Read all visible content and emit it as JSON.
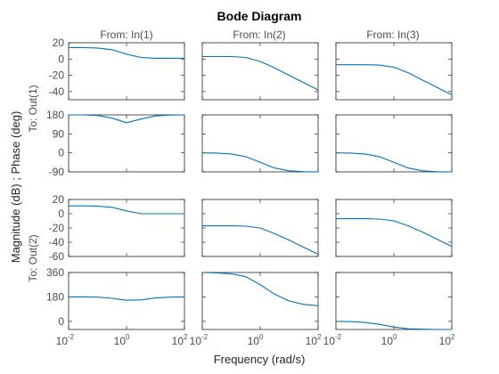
{
  "figure": {
    "title": "Bode Diagram",
    "xlabel": "Frequency (rad/s)",
    "ylabel": "Magnitude (dB) ; Phase (deg)"
  },
  "colors": {
    "line": "#0072BD",
    "axes": "#262626",
    "label": "#4d4d4d",
    "background": "#ffffff"
  },
  "chart_data": {
    "type": "line",
    "title": "Bode Diagram",
    "xlabel": "Frequency (rad/s)",
    "ylabel": "Magnitude (dB) ; Phase (deg)",
    "xscale": "log",
    "xlim": [
      0.01,
      100
    ],
    "xticks": [
      0.01,
      1,
      100
    ],
    "xtick_labels": [
      [
        "10",
        "-2"
      ],
      [
        "10",
        "0"
      ],
      [
        "10",
        "2"
      ]
    ],
    "grid": false,
    "column_labels": [
      "From: In(1)",
      "From: In(2)",
      "From: In(3)"
    ],
    "row_labels": [
      "To: Out(1)",
      "To: Out(2)"
    ],
    "x": [
      0.01,
      0.0316,
      0.1,
      0.316,
      1,
      3.16,
      10,
      31.6,
      100
    ],
    "panels": [
      {
        "row": 0,
        "col": 0,
        "kind": "magnitude",
        "ylim": [
          -50,
          20
        ],
        "yticks": [
          20,
          0,
          -20,
          -40
        ],
        "ytick_labels": [
          "20",
          "0",
          "-20",
          "-40"
        ],
        "y": [
          14,
          14,
          13.5,
          11.5,
          6,
          2,
          1,
          1,
          1
        ]
      },
      {
        "row": 0,
        "col": 1,
        "kind": "magnitude",
        "ylim": [
          -50,
          20
        ],
        "yticks": [
          20,
          0,
          -20,
          -40
        ],
        "ytick_labels": [],
        "y": [
          3,
          3,
          3,
          2,
          -3,
          -11,
          -20,
          -29,
          -38
        ]
      },
      {
        "row": 0,
        "col": 2,
        "kind": "magnitude",
        "ylim": [
          -50,
          20
        ],
        "yticks": [
          20,
          0,
          -20,
          -40
        ],
        "ytick_labels": [],
        "y": [
          -7,
          -7,
          -7,
          -7.5,
          -10,
          -17,
          -26,
          -35,
          -44
        ]
      },
      {
        "row": 0,
        "col": 0,
        "kind": "phase",
        "ylim": [
          -90,
          180
        ],
        "yticks": [
          180,
          90,
          0,
          -90
        ],
        "ytick_labels": [
          "180",
          "90",
          "0",
          "-90"
        ],
        "y": [
          180,
          180,
          177,
          165,
          143,
          160,
          175,
          179,
          180
        ]
      },
      {
        "row": 0,
        "col": 1,
        "kind": "phase",
        "ylim": [
          -90,
          180
        ],
        "yticks": [
          180,
          90,
          0,
          -90
        ],
        "ytick_labels": [],
        "y": [
          0,
          -1,
          -5,
          -18,
          -45,
          -72,
          -85,
          -89,
          -90
        ]
      },
      {
        "row": 0,
        "col": 2,
        "kind": "phase",
        "ylim": [
          -90,
          180
        ],
        "yticks": [
          180,
          90,
          0,
          -90
        ],
        "ytick_labels": [],
        "y": [
          0,
          -1,
          -5,
          -18,
          -45,
          -72,
          -85,
          -89,
          -90
        ]
      },
      {
        "row": 1,
        "col": 0,
        "kind": "magnitude",
        "ylim": [
          -60,
          20
        ],
        "yticks": [
          20,
          0,
          -20,
          -40,
          -60
        ],
        "ytick_labels": [
          "20",
          "0",
          "-20",
          "-40",
          "-60"
        ],
        "y": [
          11,
          11,
          10.5,
          9,
          4,
          0,
          0,
          0,
          0
        ]
      },
      {
        "row": 1,
        "col": 1,
        "kind": "magnitude",
        "ylim": [
          -60,
          20
        ],
        "yticks": [
          20,
          0,
          -20,
          -40,
          -60
        ],
        "ytick_labels": [],
        "y": [
          -17,
          -17,
          -17,
          -17.5,
          -20,
          -28,
          -37,
          -47,
          -57
        ]
      },
      {
        "row": 1,
        "col": 2,
        "kind": "magnitude",
        "ylim": [
          -60,
          20
        ],
        "yticks": [
          20,
          0,
          -20,
          -40,
          -60
        ],
        "ytick_labels": [],
        "y": [
          -7,
          -7,
          -7,
          -7.5,
          -10,
          -17,
          -26,
          -36,
          -46
        ]
      },
      {
        "row": 1,
        "col": 0,
        "kind": "phase",
        "ylim": [
          -60,
          360
        ],
        "yticks": [
          360,
          180,
          0
        ],
        "ytick_labels": [
          "360",
          "180",
          "0"
        ],
        "y": [
          180,
          180,
          178,
          170,
          155,
          158,
          172,
          178,
          180
        ]
      },
      {
        "row": 1,
        "col": 1,
        "kind": "phase",
        "ylim": [
          -60,
          360
        ],
        "yticks": [
          360,
          180,
          0
        ],
        "ytick_labels": [],
        "y": [
          360,
          357,
          350,
          330,
          270,
          200,
          150,
          125,
          115
        ]
      },
      {
        "row": 1,
        "col": 2,
        "kind": "phase",
        "ylim": [
          -60,
          360
        ],
        "yticks": [
          360,
          180,
          0
        ],
        "ytick_labels": [],
        "y": [
          0,
          -2,
          -8,
          -22,
          -42,
          -55,
          -58,
          -60,
          -60
        ]
      }
    ]
  }
}
